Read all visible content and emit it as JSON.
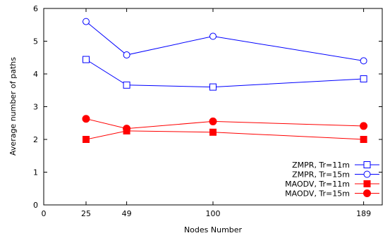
{
  "chart_data": {
    "type": "line",
    "title": "",
    "xlabel": "Nodes Number",
    "ylabel": "Average number of paths",
    "xlim": [
      0,
      200
    ],
    "ylim": [
      0,
      6
    ],
    "xticks": [
      0,
      25,
      49,
      100,
      189
    ],
    "yticks": [
      0,
      1,
      2,
      3,
      4,
      5,
      6
    ],
    "x": [
      25,
      49,
      100,
      189
    ],
    "grid": false,
    "legend_position": "bottom-right",
    "series": [
      {
        "name": "ZMPR, Tr=11m",
        "color": "#0000ff",
        "marker": "open-square",
        "values": [
          4.44,
          3.66,
          3.6,
          3.85
        ]
      },
      {
        "name": "ZMPR, Tr=15m",
        "color": "#0000ff",
        "marker": "open-circle",
        "values": [
          5.6,
          4.58,
          5.15,
          4.4
        ]
      },
      {
        "name": "MAODV, Tr=11m",
        "color": "#ff0000",
        "marker": "filled-square",
        "values": [
          2.0,
          2.26,
          2.22,
          2.0
        ]
      },
      {
        "name": "MAODV, Tr=15m",
        "color": "#ff0000",
        "marker": "filled-circle",
        "values": [
          2.63,
          2.33,
          2.55,
          2.41
        ]
      }
    ]
  }
}
